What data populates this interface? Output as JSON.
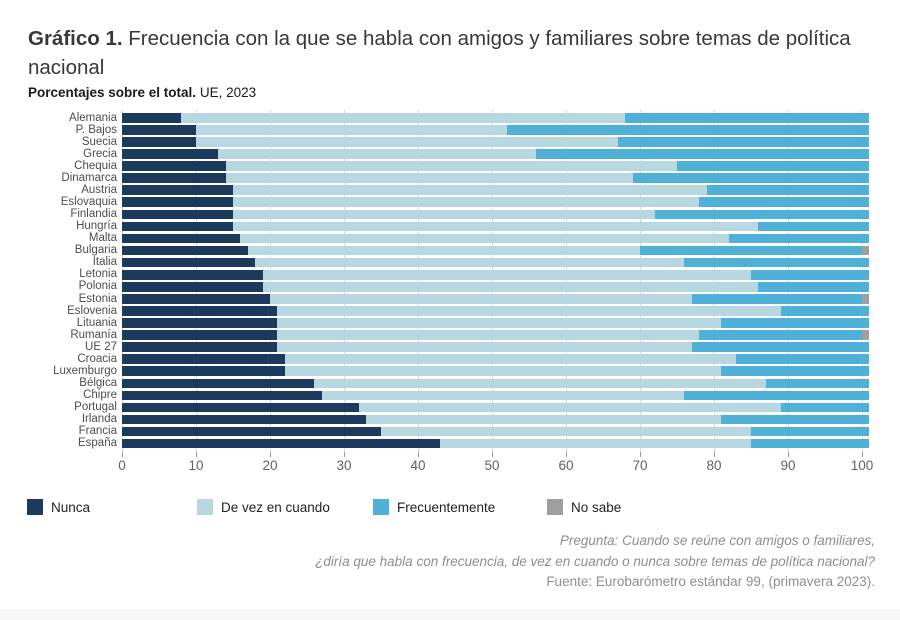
{
  "header": {
    "title_bold": "Gráfico 1.",
    "title_rest": " Frecuencia con la que se habla con amigos y familiares sobre temas de política nacional",
    "subtitle_bold": "Porcentajes sobre el total.",
    "subtitle_rest": " UE, 2023"
  },
  "chart_data": {
    "type": "bar",
    "orientation": "horizontal",
    "stacked": true,
    "title": "Gráfico 1. Frecuencia con la que se habla con amigos y familiares sobre temas de política nacional",
    "subtitle": "Porcentajes sobre el total. UE, 2023",
    "xlim": [
      0,
      100
    ],
    "xticks": [
      0,
      10,
      20,
      30,
      40,
      50,
      60,
      70,
      80,
      90,
      100
    ],
    "grid": true,
    "legend_position": "bottom",
    "categories": [
      "Alemania",
      "P. Bajos",
      "Suecia",
      "Grecia",
      "Chequia",
      "Dinamarca",
      "Austria",
      "Eslovaquia",
      "Finlandia",
      "Hungría",
      "Malta",
      "Bulgaria",
      "Italia",
      "Letonia",
      "Polonia",
      "Estonia",
      "Eslovenia",
      "Lituania",
      "Rumanía",
      "UE 27",
      "Croacia",
      "Luxemburgo",
      "Bélgica",
      "Chipre",
      "Portugal",
      "Irlanda",
      "Francia",
      "España"
    ],
    "series": [
      {
        "name": "Nunca",
        "color": "#1c3a5e",
        "values": [
          8,
          10,
          10,
          13,
          14,
          14,
          15,
          15,
          15,
          15,
          16,
          17,
          18,
          19,
          19,
          20,
          21,
          21,
          21,
          21,
          22,
          22,
          26,
          27,
          32,
          33,
          35,
          43
        ]
      },
      {
        "name": "De vez en cuando",
        "color": "#b7d8e0",
        "values": [
          60,
          42,
          57,
          43,
          61,
          55,
          64,
          63,
          57,
          71,
          66,
          53,
          58,
          66,
          67,
          57,
          68,
          60,
          57,
          56,
          61,
          59,
          61,
          49,
          57,
          48,
          50,
          42
        ]
      },
      {
        "name": "Frecuentemente",
        "color": "#4fb0d8",
        "values": [
          33,
          49,
          34,
          45,
          26,
          32,
          22,
          23,
          29,
          15,
          19,
          30,
          25,
          16,
          15,
          23,
          12,
          20,
          22,
          24,
          18,
          20,
          14,
          25,
          12,
          20,
          16,
          16
        ]
      },
      {
        "name": "No sabe",
        "color": "#a0a0a0",
        "values": [
          0,
          0,
          0,
          0,
          0,
          0,
          0,
          0,
          0,
          0,
          0,
          1,
          0,
          0,
          0,
          1,
          0,
          0,
          1,
          0,
          0,
          0,
          0,
          0,
          0,
          0,
          0,
          0
        ]
      }
    ]
  },
  "legend": {
    "items": [
      {
        "label": "Nunca",
        "color": "#1c3a5e"
      },
      {
        "label": "De vez en cuando",
        "color": "#b7d8e0"
      },
      {
        "label": "Frecuentemente",
        "color": "#4fb0d8"
      },
      {
        "label": "No sabe",
        "color": "#a0a0a0"
      }
    ]
  },
  "footer": {
    "line1": "Pregunta: Cuando se reúne con amigos o familiares,",
    "line2": "¿diría que habla con frecuencia, de vez en cuando o nunca sobre temas de política nacional?",
    "line3": "Fuente: Eurobarómetro estándar 99, (primavera 2023)."
  }
}
